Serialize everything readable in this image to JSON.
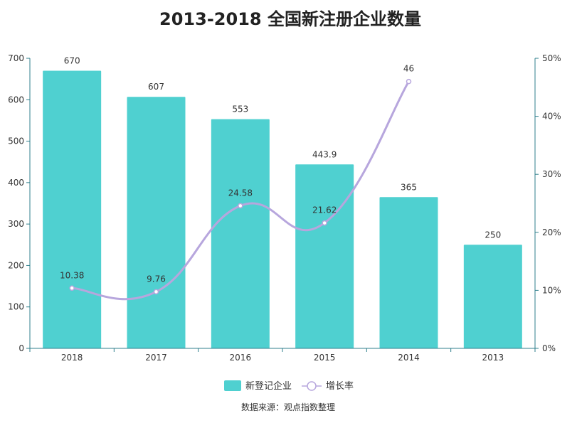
{
  "chart_data": {
    "type": "bar",
    "title": "2013-2018 全国新注册企业数量",
    "categories": [
      "2018",
      "2017",
      "2016",
      "2015",
      "2014",
      "2013"
    ],
    "series": [
      {
        "name": "新登记企业",
        "type": "bar",
        "axis": "left",
        "color": "#4fd0d0",
        "values": [
          670,
          607,
          553,
          443.9,
          365,
          250
        ],
        "labels": [
          "670",
          "607",
          "553",
          "443.9",
          "365",
          "250"
        ]
      },
      {
        "name": "增长率",
        "type": "line",
        "axis": "right",
        "color": "#b7a6dd",
        "values": [
          10.38,
          9.76,
          24.58,
          21.62,
          46,
          null
        ],
        "labels": [
          "10.38",
          "9.76",
          "24.58",
          "21.62",
          "46",
          ""
        ]
      }
    ],
    "y_left": {
      "min": 0,
      "max": 700,
      "ticks": [
        0,
        100,
        200,
        300,
        400,
        500,
        600,
        700
      ],
      "tick_labels": [
        "0",
        "100",
        "200",
        "300",
        "400",
        "500",
        "600",
        "700"
      ]
    },
    "y_right": {
      "min": 0,
      "max": 50,
      "ticks": [
        0,
        10,
        20,
        30,
        40,
        50
      ],
      "tick_labels": [
        "0%",
        "10%",
        "20%",
        "30%",
        "40%",
        "50%"
      ]
    },
    "grid": false,
    "legend_position": "bottom",
    "source": "数据来源：观点指数整理"
  }
}
